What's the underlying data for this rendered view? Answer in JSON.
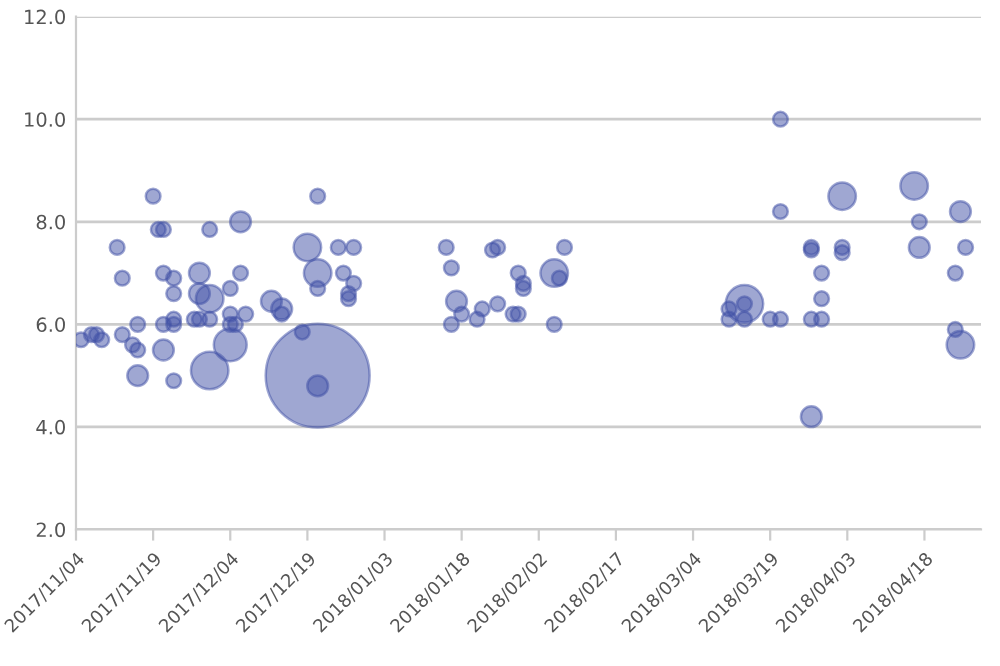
{
  "chart_data": {
    "type": "bubble",
    "color": "#3f4fa5",
    "x": [
      "2017-11-05",
      "2017-11-07",
      "2017-11-08",
      "2017-11-09",
      "2017-11-12",
      "2017-11-13",
      "2017-11-13",
      "2017-11-15",
      "2017-11-16",
      "2017-11-16",
      "2017-11-16",
      "2017-11-19",
      "2017-11-20",
      "2017-11-21",
      "2017-11-21",
      "2017-11-21",
      "2017-11-23",
      "2017-11-23",
      "2017-11-21",
      "2017-11-23",
      "2017-11-23",
      "2017-11-23",
      "2017-11-27",
      "2017-11-28",
      "2017-11-28",
      "2017-11-28",
      "2017-11-30",
      "2017-11-30",
      "2017-11-30",
      "2017-11-30",
      "2017-12-04",
      "2017-12-04",
      "2017-12-04",
      "2017-12-04",
      "2017-12-05",
      "2017-12-06",
      "2017-12-06",
      "2017-12-07",
      "2017-12-12",
      "2017-12-14",
      "2017-12-14",
      "2017-12-18",
      "2017-12-19",
      "2017-12-21",
      "2017-12-21",
      "2017-12-21",
      "2017-12-21",
      "2017-12-21",
      "2017-12-25",
      "2017-12-28",
      "2017-12-26",
      "2017-12-27",
      "2017-12-27",
      "2017-12-28",
      "2018-01-15",
      "2018-01-16",
      "2018-01-17",
      "2018-01-16",
      "2018-01-18",
      "2018-01-21",
      "2018-01-22",
      "2018-01-24",
      "2018-01-25",
      "2018-01-25",
      "2018-01-28",
      "2018-01-29",
      "2018-01-29",
      "2018-01-30",
      "2018-01-30",
      "2018-02-05",
      "2018-02-06",
      "2018-02-07",
      "2018-02-05",
      "2018-03-14",
      "2018-03-11",
      "2018-03-11",
      "2018-03-14",
      "2018-03-14",
      "2018-03-19",
      "2018-03-21",
      "2018-03-21",
      "2018-03-21",
      "2018-03-27",
      "2018-03-27",
      "2018-03-27",
      "2018-03-29",
      "2018-03-29",
      "2018-03-29",
      "2018-03-27",
      "2018-04-02",
      "2018-04-02",
      "2018-04-02",
      "2018-04-16",
      "2018-04-17",
      "2018-04-17",
      "2018-04-25",
      "2018-04-26",
      "2018-04-24",
      "2018-04-24",
      "2018-04-25"
    ],
    "values": [
      5.7,
      5.8,
      5.8,
      5.7,
      7.5,
      6.9,
      5.8,
      5.6,
      5.5,
      6.0,
      5.0,
      8.5,
      7.85,
      7.85,
      5.5,
      7.0,
      6.9,
      6.6,
      6.0,
      6.0,
      6.1,
      4.9,
      6.1,
      6.1,
      7.0,
      6.6,
      6.5,
      6.1,
      5.1,
      7.85,
      6.7,
      6.2,
      5.6,
      6.0,
      6.0,
      7.0,
      8.0,
      6.2,
      6.45,
      6.3,
      6.2,
      5.85,
      7.5,
      7.0,
      8.5,
      6.7,
      5.0,
      4.8,
      7.5,
      7.5,
      7.0,
      6.6,
      6.5,
      6.8,
      7.5,
      7.1,
      6.45,
      6.0,
      6.2,
      6.1,
      6.3,
      7.45,
      7.5,
      6.4,
      6.2,
      6.2,
      7.0,
      6.8,
      6.7,
      7.0,
      6.9,
      7.5,
      6.0,
      6.4,
      6.3,
      6.1,
      6.1,
      6.4,
      6.1,
      6.1,
      10.0,
      8.2,
      7.5,
      7.45,
      6.1,
      6.1,
      6.5,
      7.0,
      4.2,
      8.5,
      7.5,
      7.4,
      8.7,
      8.0,
      7.5,
      8.2,
      7.5,
      7.0,
      5.9,
      5.6
    ],
    "sizes": [
      0.02,
      0.02,
      0.02,
      0.02,
      0.02,
      0.02,
      0.02,
      0.02,
      0.02,
      0.02,
      0.04,
      0.02,
      0.02,
      0.02,
      0.04,
      0.02,
      0.02,
      0.02,
      0.02,
      0.02,
      0.02,
      0.02,
      0.02,
      0.02,
      0.04,
      0.04,
      0.07,
      0.02,
      0.13,
      0.02,
      0.02,
      0.02,
      0.1,
      0.02,
      0.02,
      0.02,
      0.04,
      0.02,
      0.04,
      0.04,
      0.02,
      0.02,
      0.07,
      0.07,
      0.02,
      0.02,
      1,
      0.04,
      0.02,
      0.02,
      0.02,
      0.02,
      0.02,
      0.02,
      0.02,
      0.02,
      0.04,
      0.02,
      0.02,
      0.02,
      0.02,
      0.02,
      0.02,
      0.02,
      0.02,
      0.02,
      0.02,
      0.02,
      0.02,
      0.07,
      0.02,
      0.02,
      0.02,
      0.13,
      0.02,
      0.02,
      0.02,
      0.02,
      0.02,
      0.02,
      0.02,
      0.02,
      0.02,
      0.02,
      0.02,
      0.02,
      0.02,
      0.02,
      0.04,
      0.07,
      0.02,
      0.02,
      0.07,
      0.02,
      0.04,
      0.04,
      0.02,
      0.02,
      0.02,
      0.07
    ],
    "xlim": [
      "2017-11-04",
      "2018-04-29"
    ],
    "xticks": [
      {
        "value": "2017-11-04",
        "label": "2017/11/04"
      },
      {
        "value": "2017-11-19",
        "label": "2017/11/19"
      },
      {
        "value": "2017-12-04",
        "label": "2017/12/04"
      },
      {
        "value": "2017-12-19",
        "label": "2017/12/19"
      },
      {
        "value": "2018-01-03",
        "label": "2018/01/03"
      },
      {
        "value": "2018-01-18",
        "label": "2018/01/18"
      },
      {
        "value": "2018-02-02",
        "label": "2018/02/02"
      },
      {
        "value": "2018-02-17",
        "label": "2018/02/17"
      },
      {
        "value": "2018-03-04",
        "label": "2018/03/04"
      },
      {
        "value": "2018-03-19",
        "label": "2018/03/19"
      },
      {
        "value": "2018-04-03",
        "label": "2018/04/03"
      },
      {
        "value": "2018-04-18",
        "label": "2018/04/18"
      }
    ],
    "ylim": [
      2.0,
      12.0
    ],
    "yticks": [
      {
        "value": 2.0,
        "label": "2.0"
      },
      {
        "value": 4.0,
        "label": "4.0"
      },
      {
        "value": 6.0,
        "label": "6.0"
      },
      {
        "value": 8.0,
        "label": "8.0"
      },
      {
        "value": 10.0,
        "label": "10.0"
      },
      {
        "value": 12.0,
        "label": "12.0"
      }
    ],
    "grid": "y",
    "legend": false
  }
}
